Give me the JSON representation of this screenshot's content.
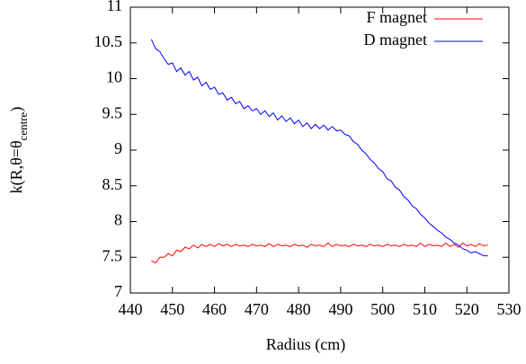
{
  "chart_data": {
    "type": "line",
    "xlabel": "Radius (cm)",
    "ylabel": {
      "main": "k(R,θ=θ",
      "sub": "centre",
      "end": ")"
    },
    "x": [
      445,
      446,
      447,
      448,
      449,
      450,
      451,
      452,
      453,
      454,
      455,
      456,
      457,
      458,
      459,
      460,
      461,
      462,
      463,
      464,
      465,
      466,
      467,
      468,
      469,
      470,
      471,
      472,
      473,
      474,
      475,
      476,
      477,
      478,
      479,
      480,
      481,
      482,
      483,
      484,
      485,
      486,
      487,
      488,
      489,
      490,
      491,
      492,
      493,
      494,
      495,
      496,
      497,
      498,
      499,
      500,
      501,
      502,
      503,
      504,
      505,
      506,
      507,
      508,
      509,
      510,
      511,
      512,
      513,
      514,
      515,
      516,
      517,
      518,
      519,
      520,
      521,
      522,
      523,
      524,
      525
    ],
    "series": [
      {
        "name": "F magnet",
        "color": "#ff0000",
        "values": [
          7.45,
          7.42,
          7.5,
          7.5,
          7.55,
          7.52,
          7.6,
          7.58,
          7.64,
          7.62,
          7.67,
          7.63,
          7.68,
          7.65,
          7.68,
          7.65,
          7.69,
          7.66,
          7.68,
          7.65,
          7.68,
          7.66,
          7.67,
          7.65,
          7.68,
          7.66,
          7.67,
          7.65,
          7.69,
          7.65,
          7.68,
          7.66,
          7.67,
          7.65,
          7.68,
          7.66,
          7.67,
          7.64,
          7.68,
          7.66,
          7.67,
          7.65,
          7.7,
          7.65,
          7.68,
          7.66,
          7.67,
          7.65,
          7.68,
          7.66,
          7.67,
          7.65,
          7.68,
          7.66,
          7.67,
          7.65,
          7.68,
          7.66,
          7.67,
          7.65,
          7.68,
          7.66,
          7.67,
          7.65,
          7.7,
          7.65,
          7.68,
          7.66,
          7.67,
          7.65,
          7.7,
          7.65,
          7.68,
          7.64,
          7.7,
          7.66,
          7.68,
          7.65,
          7.69,
          7.66,
          7.67
        ]
      },
      {
        "name": "D magnet",
        "color": "#0000ff",
        "values": [
          10.55,
          10.42,
          10.38,
          10.28,
          10.2,
          10.22,
          10.1,
          10.15,
          10.05,
          10.1,
          9.98,
          10.02,
          9.9,
          9.95,
          9.85,
          9.88,
          9.78,
          9.8,
          9.7,
          9.74,
          9.65,
          9.68,
          9.58,
          9.62,
          9.55,
          9.58,
          9.5,
          9.55,
          9.47,
          9.52,
          9.42,
          9.48,
          9.4,
          9.45,
          9.37,
          9.42,
          9.33,
          9.38,
          9.3,
          9.36,
          9.3,
          9.35,
          9.28,
          9.33,
          9.27,
          9.28,
          9.22,
          9.2,
          9.12,
          9.08,
          9.0,
          8.95,
          8.87,
          8.82,
          8.74,
          8.7,
          8.6,
          8.57,
          8.48,
          8.44,
          8.35,
          8.3,
          8.22,
          8.18,
          8.1,
          8.05,
          7.98,
          7.93,
          7.88,
          7.84,
          7.78,
          7.75,
          7.7,
          7.67,
          7.62,
          7.6,
          7.56,
          7.58,
          7.55,
          7.52,
          7.52
        ]
      }
    ],
    "xlim": [
      440,
      530
    ],
    "xticks": [
      440,
      450,
      460,
      470,
      480,
      490,
      500,
      510,
      520,
      530
    ],
    "ylim": [
      7,
      11
    ],
    "yticks": [
      7,
      7.5,
      8,
      8.5,
      9,
      9.5,
      10,
      10.5,
      11
    ],
    "legend": "top-right"
  }
}
